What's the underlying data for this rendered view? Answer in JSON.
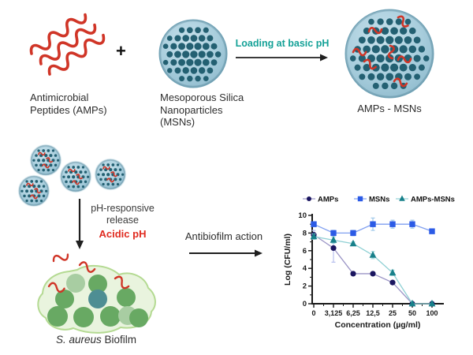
{
  "colors": {
    "ink": "#2e2e2e",
    "teal": "#14a197",
    "acidic": "#e02b20",
    "squiggle_red": "#d03527",
    "arrow": "#1f1f1f",
    "sphere_body": "#a9cedd",
    "sphere_body_light": "#c9e2ec",
    "sphere_rim": "#74a7bb",
    "sphere_dot": "#236072",
    "biofilm_fill": "#e9f4de",
    "biofilm_stroke": "#b4da92",
    "cell_green": "#68a963",
    "cell_pale": "#a8cda2",
    "cell_teal": "#4e8e93"
  },
  "labels": {
    "amps": "Antimicrobial\nPeptides (AMPs)",
    "plus": "+",
    "msns": "Mesoporous Silica\nNanoparticles\n(MSNs)",
    "loading": "Loading at basic pH",
    "amps_msns": "AMPs - MSNs",
    "ph_release": "pH-responsive\nrelease",
    "acidic": "Acidic pH",
    "antibiofilm": "Antibiofilm action",
    "biofilm_species": "S. aureus",
    "biofilm_rest": " Biofilm"
  },
  "chart_data": {
    "type": "line",
    "x_categories": [
      "0",
      "3,125",
      "6,25",
      "12,5",
      "25",
      "50",
      "100"
    ],
    "xlabel": "Concentration (µg/ml)",
    "ylabel": "Log (CFU/ml)",
    "ylim": [
      0,
      10
    ],
    "yticks": [
      0,
      2,
      4,
      6,
      8,
      10
    ],
    "legend_position": "top",
    "grid": false,
    "series": [
      {
        "name": "AMPs",
        "marker": "circle",
        "color": "#1b1660",
        "line_color": "#9b95c6",
        "error_color": "#b7bfee",
        "values": [
          7.8,
          6.3,
          3.4,
          3.4,
          2.4,
          0,
          0
        ],
        "errors": [
          0.5,
          1.6,
          0.2,
          0.2,
          0.2,
          0,
          0
        ]
      },
      {
        "name": "MSNs",
        "marker": "square",
        "color": "#2c5be6",
        "line_color": "#7f9ff0",
        "error_color": "#9fc8ea",
        "values": [
          9,
          8,
          8,
          9,
          9,
          9,
          8.2
        ],
        "errors": [
          0.15,
          0.3,
          0.3,
          0.7,
          0.45,
          0.45,
          0.15
        ]
      },
      {
        "name": "AMPs-MSNs",
        "marker": "triangle",
        "color": "#17808a",
        "line_color": "#8fd0d4",
        "error_color": "#9ad9dc",
        "values": [
          7.6,
          7.2,
          6.8,
          5.5,
          3.5,
          0,
          0
        ],
        "errors": [
          0.3,
          0.35,
          0.2,
          0.4,
          0.3,
          0,
          0
        ]
      }
    ]
  }
}
